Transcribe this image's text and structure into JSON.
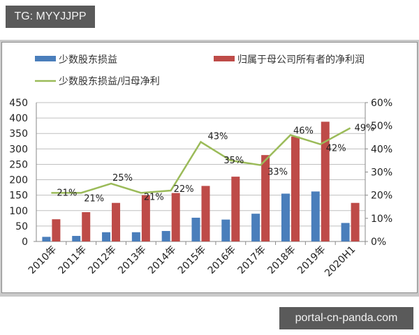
{
  "watermarks": {
    "top": "TG: MYYJJPP",
    "bottom": "portal-cn-panda.com"
  },
  "colors": {
    "minority": "#4a7ebb",
    "parent": "#be4b48",
    "ratio": "#9bbb59",
    "grid": "#bfbfbf"
  },
  "legend": {
    "minority": "少数股东损益",
    "parent": "归属于母公司所有者的净利润",
    "ratio": "少数股东损益/归母净利"
  },
  "axes": {
    "left_ticks": [
      "0",
      "50",
      "100",
      "150",
      "200",
      "250",
      "300",
      "350",
      "400",
      "450"
    ],
    "right_ticks": [
      "0%",
      "10%",
      "20%",
      "30%",
      "40%",
      "50%",
      "60%"
    ]
  },
  "chart_data": {
    "type": "bar",
    "title": "",
    "xlabel": "",
    "ylabel": "",
    "ylim": [
      0,
      450
    ],
    "y2lim": [
      0,
      0.6
    ],
    "grid": true,
    "legend_position": "top",
    "categories": [
      "2010年",
      "2011年",
      "2012年",
      "2013年",
      "2014年",
      "2015年",
      "2016年",
      "2017年",
      "2018年",
      "2019年",
      "2020H1"
    ],
    "series": [
      {
        "name": "少数股东损益",
        "type": "bar",
        "axis": "left",
        "values": [
          15,
          18,
          30,
          30,
          34,
          77,
          71,
          90,
          155,
          162,
          60
        ]
      },
      {
        "name": "归属于母公司所有者的净利润",
        "type": "bar",
        "axis": "left",
        "values": [
          72,
          95,
          125,
          150,
          157,
          180,
          210,
          280,
          340,
          388,
          125
        ]
      },
      {
        "name": "少数股东损益/归母净利",
        "type": "line",
        "axis": "right",
        "values": [
          0.21,
          0.21,
          0.25,
          0.21,
          0.22,
          0.43,
          0.35,
          0.33,
          0.46,
          0.42,
          0.49
        ]
      }
    ],
    "data_labels": [
      "21%",
      "21%",
      "25%",
      "21%",
      "22%",
      "43%",
      "35%",
      "33%",
      "46%",
      "42%",
      "49%"
    ]
  }
}
